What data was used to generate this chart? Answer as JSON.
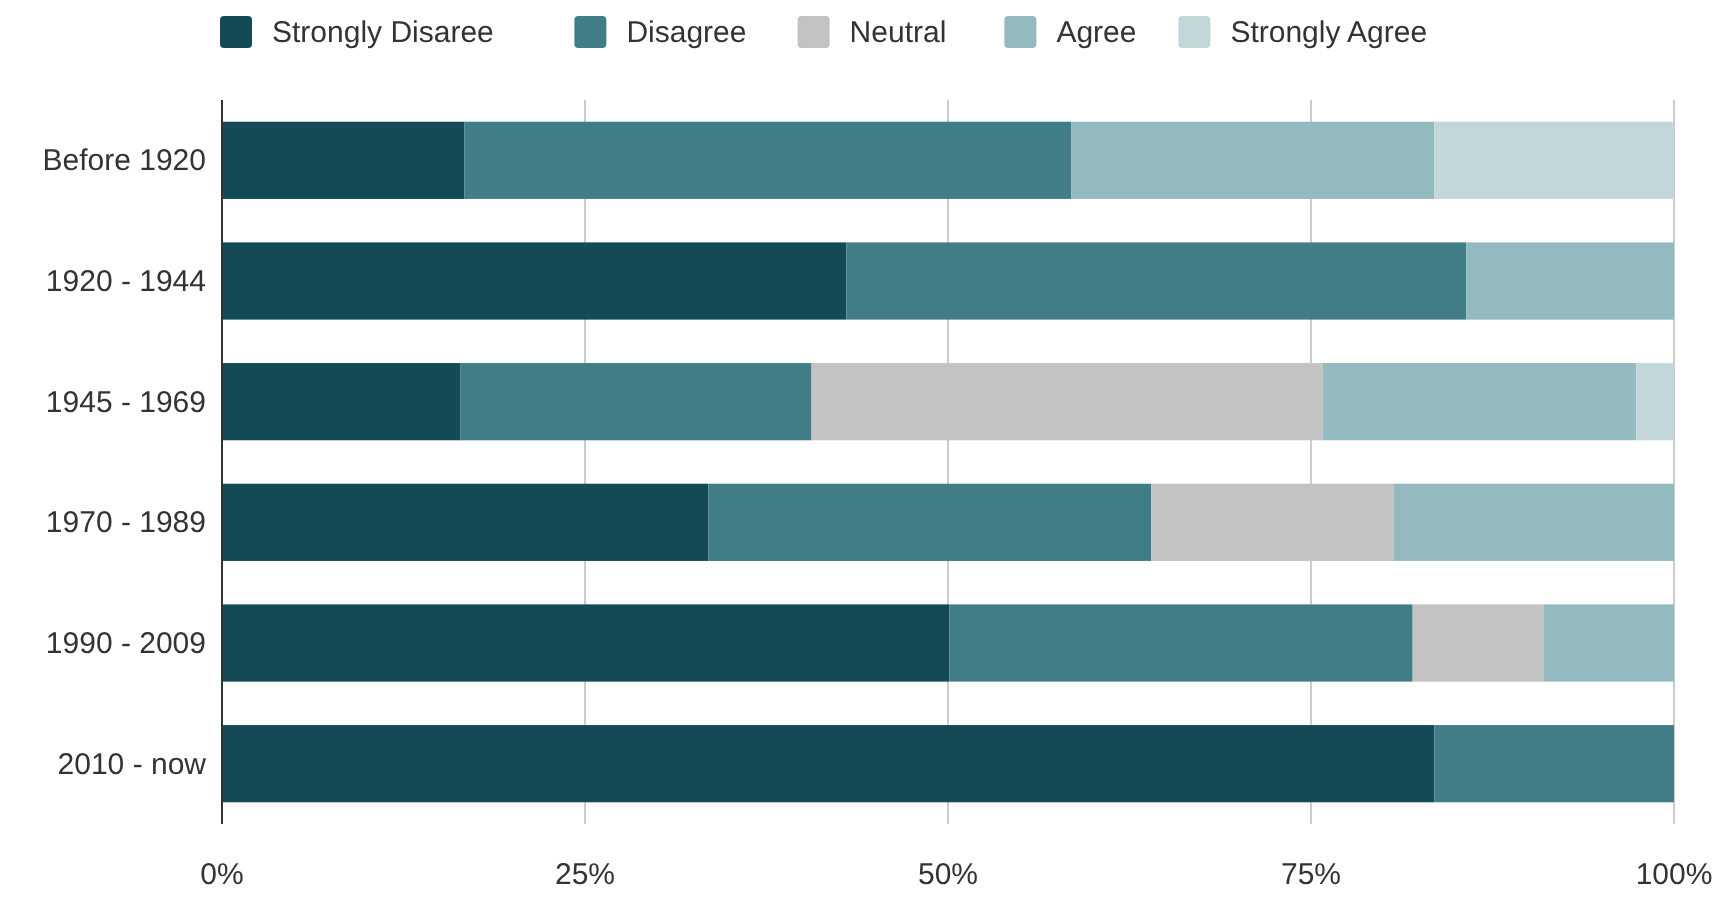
{
  "chart_data": {
    "type": "bar",
    "orientation": "horizontal",
    "stacked": true,
    "categories": [
      "Before 1920",
      "1920 - 1944",
      "1945 - 1969",
      "1970 - 1989",
      "1990 - 2009",
      "2010 - now"
    ],
    "series": [
      {
        "name": "Strongly Disaree",
        "color": "#134a55",
        "values": [
          16.7,
          43,
          16.4,
          33.5,
          50.1,
          83.5
        ]
      },
      {
        "name": "Disagree",
        "color": "#417d87",
        "values": [
          41.8,
          42.7,
          24.2,
          30.5,
          31.9,
          16.5
        ]
      },
      {
        "name": "Neutral",
        "color": "#c3c3c3",
        "values": [
          0,
          0,
          35.2,
          16.7,
          9,
          0
        ]
      },
      {
        "name": "Agree",
        "color": "#93babf",
        "values": [
          25,
          14.3,
          21.6,
          19.3,
          9,
          0
        ]
      },
      {
        "name": "Strongly Agree",
        "color": "#c3d7db",
        "values": [
          16.5,
          0,
          2.6,
          0,
          0,
          0
        ]
      }
    ],
    "xlim": [
      0,
      100
    ],
    "xticks": [
      {
        "value": 0,
        "label": "0%"
      },
      {
        "value": 25,
        "label": "25%"
      },
      {
        "value": 50,
        "label": "50%"
      },
      {
        "value": 75,
        "label": "75%"
      },
      {
        "value": 100,
        "label": "100%"
      }
    ],
    "grid": "x",
    "legend": "top"
  }
}
